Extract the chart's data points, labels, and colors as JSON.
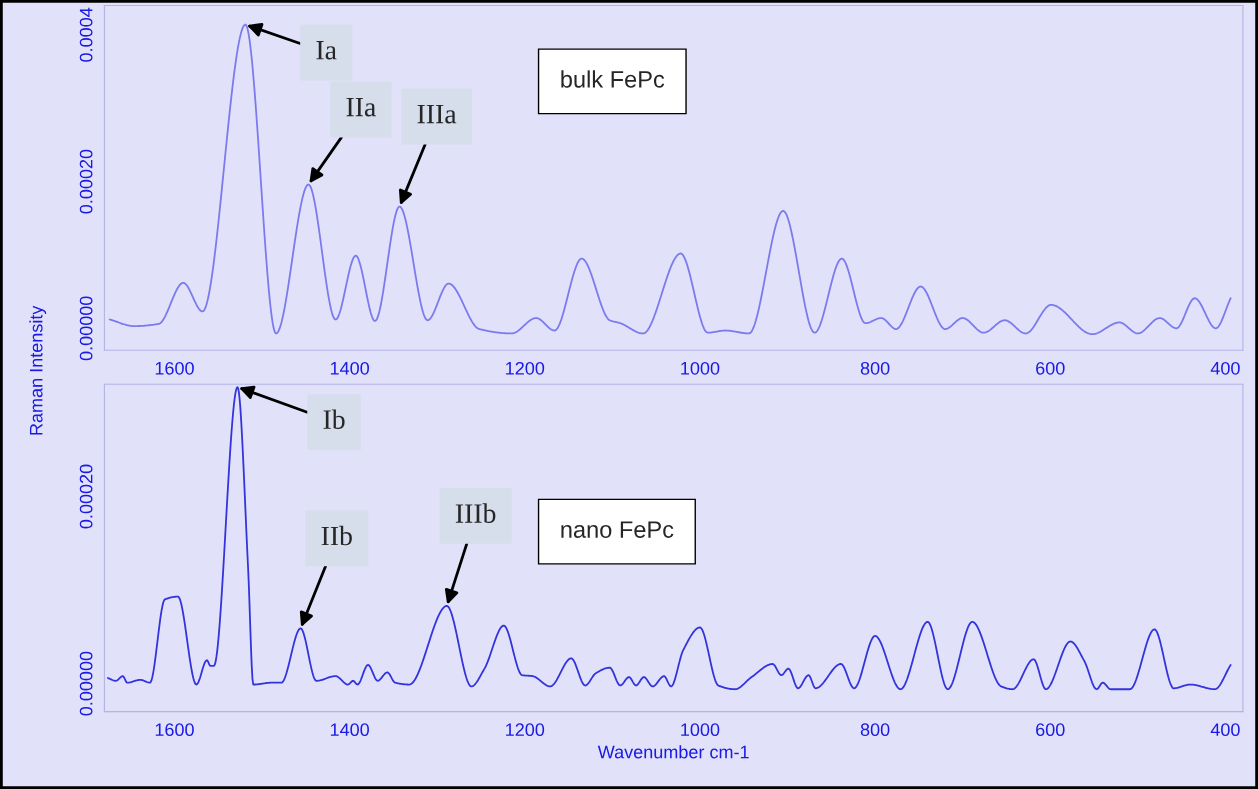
{
  "chart_data": [
    {
      "type": "line",
      "ylabel": "Raman Intensity",
      "x": [
        1674,
        1646,
        1618,
        1590,
        1568,
        1519,
        1484,
        1447,
        1416,
        1393,
        1371,
        1343,
        1311,
        1287,
        1252,
        1215,
        1187,
        1166,
        1135,
        1103,
        1091,
        1065,
        1022,
        991,
        971,
        944,
        905,
        869,
        838,
        811,
        793,
        776,
        748,
        720,
        700,
        676,
        652,
        628,
        599,
        552,
        521,
        500,
        475,
        456,
        435,
        411,
        394
      ],
      "series": [
        {
          "color": "#7b7bee",
          "values": [
            1.2e-05,
            3e-06,
            6e-06,
            6.2e-05,
            2.3e-05,
            0.000414,
            -7e-06,
            0.000196,
            1.2e-05,
            9.9e-05,
            1e-05,
            0.000166,
            1.1e-05,
            6.1e-05,
            -1e-06,
            -7e-06,
            1.4e-05,
            -3e-06,
            9.5e-05,
            1.1e-05,
            7e-06,
            -7e-06,
            0.000102,
            -6e-06,
            -3e-06,
            -7e-06,
            0.00016,
            -6e-06,
            9.5e-05,
            7e-06,
            1.4e-05,
            -1e-06,
            5.7e-05,
            -1e-06,
            1.4e-05,
            -6e-06,
            1.1e-05,
            -7e-06,
            3.2e-05,
            -8e-06,
            8e-06,
            -7e-06,
            1.4e-05,
            0,
            4.1e-05,
            0,
            4.1e-05
          ]
        }
      ],
      "xlim": [
        1680,
        380
      ],
      "xticks": [
        1600,
        1400,
        1200,
        1000,
        800,
        600,
        400
      ],
      "ylim": [
        -3e-05,
        0.00044
      ],
      "yticks": [
        {
          "value": 0,
          "label": "0.00000"
        },
        {
          "value": 0.0002,
          "label": "0.00020"
        },
        {
          "value": 0.0004,
          "label": "0.0004"
        }
      ],
      "annotations": [
        {
          "text": "Ia",
          "x": 1519,
          "y": 0.000414
        },
        {
          "text": "IIa",
          "x": 1447,
          "y": 0.000196
        },
        {
          "text": "IIIa",
          "x": 1343,
          "y": 0.000166
        },
        "bulk FePc"
      ]
    },
    {
      "type": "line",
      "xlabel": "Wavenumber cm-1",
      "x": [
        1676,
        1667,
        1659,
        1654,
        1639,
        1628,
        1611,
        1596,
        1575,
        1563,
        1559,
        1555,
        1528,
        1516,
        1510,
        1489,
        1478,
        1456,
        1438,
        1416,
        1402,
        1396,
        1391,
        1379,
        1368,
        1357,
        1348,
        1332,
        1289,
        1261,
        1246,
        1224,
        1203,
        1191,
        1171,
        1147,
        1131,
        1119,
        1103,
        1091,
        1081,
        1073,
        1064,
        1054,
        1041,
        1033,
        1019,
        1000,
        979,
        960,
        941,
        917,
        907,
        899,
        888,
        876,
        868,
        839,
        824,
        800,
        771,
        740,
        717,
        689,
        656,
        643,
        619,
        605,
        577,
        561,
        547,
        540,
        531,
        509,
        481,
        459,
        440,
        412,
        394
      ],
      "series": [
        {
          "color": "#3434dc",
          "values": [
            6e-06,
            3e-06,
            8e-06,
            1e-06,
            4e-06,
            1e-06,
            9e-05,
            9.3e-05,
            -1e-06,
            2.5e-05,
            1.9e-05,
            1.9e-05,
            0.000317,
            0.000125,
            -1e-06,
            1e-06,
            1e-06,
            5.9e-05,
            3e-06,
            8e-06,
            -1e-06,
            3e-06,
            -1e-06,
            2e-05,
            3e-06,
            1.2e-05,
            1e-06,
            -1e-06,
            8.3e-05,
            -3e-06,
            1.6e-05,
            6.2e-05,
            9e-06,
            8e-06,
            -3e-06,
            2.7e-05,
            -2e-06,
            1.1e-05,
            1.7e-05,
            -2e-06,
            7e-06,
            -2e-06,
            7e-06,
            -3e-06,
            8e-06,
            -3e-06,
            3.6e-05,
            6e-05,
            -2e-06,
            -6e-06,
            7e-06,
            2.1e-05,
            9e-06,
            1.6e-05,
            -5e-06,
            9e-06,
            -5e-06,
            2.1e-05,
            -5e-06,
            5.1e-05,
            -6e-06,
            6.6e-05,
            -6e-06,
            6.6e-05,
            -3e-06,
            -6e-06,
            2.6e-05,
            -6e-06,
            4.5e-05,
            2.4e-05,
            -6e-06,
            1e-06,
            -6e-06,
            -6e-06,
            5.8e-05,
            -5e-06,
            -1e-06,
            -6e-06,
            2e-05
          ]
        }
      ],
      "xlim": [
        1680,
        380
      ],
      "xticks": [
        1600,
        1400,
        1200,
        1000,
        800,
        600,
        400
      ],
      "ylim": [
        -3e-05,
        0.00032
      ],
      "yticks": [
        {
          "value": 0,
          "label": "0.00000"
        },
        {
          "value": 0.0002,
          "label": "0.00020"
        }
      ],
      "annotations": [
        {
          "text": "Ib",
          "x": 1528,
          "y": 0.000317
        },
        {
          "text": "IIb",
          "x": 1456,
          "y": 5.9e-05
        },
        {
          "text": "IIIb",
          "x": 1289,
          "y": 8.3e-05
        },
        "nano FePc"
      ]
    }
  ]
}
